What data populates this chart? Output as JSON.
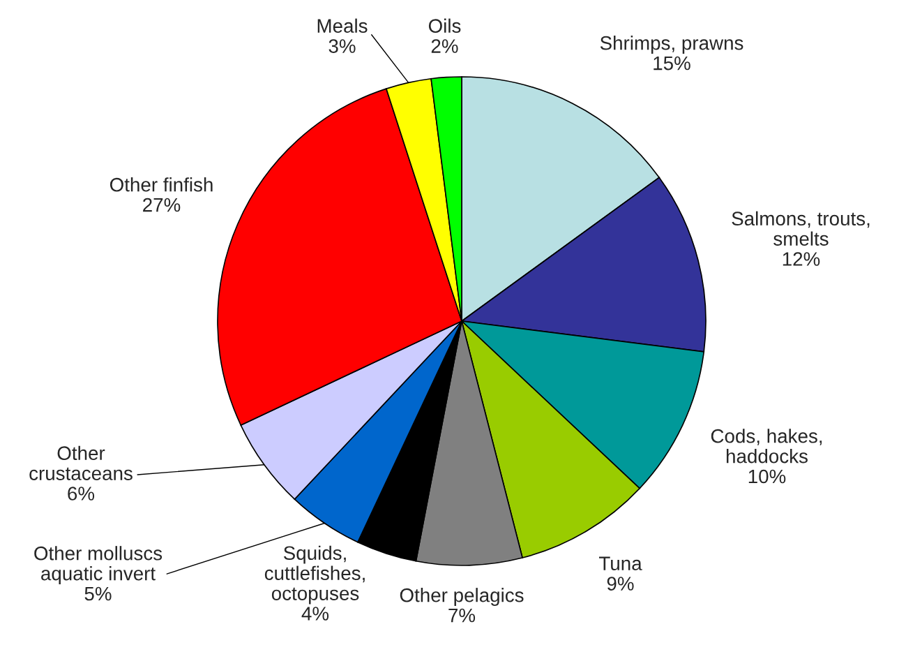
{
  "chart_data": {
    "type": "pie",
    "categories": [
      "Shrimps, prawns",
      "Salmons, trouts,\nsmelts",
      "Cods, hakes,\nhaddocks",
      "Tuna",
      "Other pelagics",
      "Squids,\ncuttlefishes,\noctopuses",
      "Other molluscs\naquatic invert",
      "Other\ncrustaceans",
      "Other finfish",
      "Meals",
      "Oils"
    ],
    "values": [
      15,
      12,
      10,
      9,
      7,
      4,
      5,
      6,
      27,
      3,
      2
    ],
    "value_labels": [
      "15%",
      "12%",
      "10%",
      "9%",
      "7%",
      "4%",
      "5%",
      "6%",
      "27%",
      "3%",
      "2%"
    ],
    "colors": [
      "#b8e0e3",
      "#333399",
      "#009999",
      "#99cc00",
      "#808080",
      "#000000",
      "#0066cc",
      "#ccccff",
      "#ff0000",
      "#ffff00",
      "#00ff00"
    ]
  }
}
